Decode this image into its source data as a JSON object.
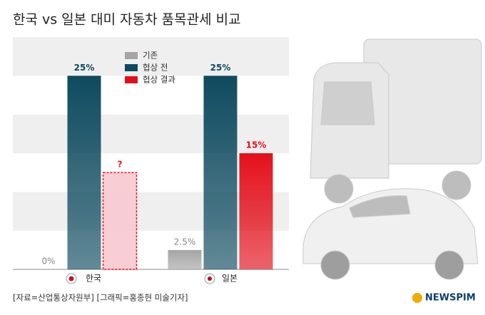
{
  "chart_data": {
    "type": "bar",
    "title": "한국 vs 일본 대미 자동차 품목관세 비교",
    "categories": [
      "한국",
      "일본"
    ],
    "series": [
      {
        "name": "기존",
        "color": "#a5a5a5",
        "values": [
          0,
          2.5
        ],
        "value_labels": [
          "0%",
          "2.5%"
        ]
      },
      {
        "name": "협상 전",
        "color": "#0e4a5f",
        "values": [
          25,
          25
        ],
        "value_labels": [
          "25%",
          "25%"
        ]
      },
      {
        "name": "협상 결과",
        "color": "#e3101c",
        "values": [
          12.5,
          15
        ],
        "value_labels": [
          "?",
          "15%"
        ],
        "styles": [
          "dashed",
          "solid"
        ]
      }
    ],
    "ylim": [
      0,
      30
    ],
    "yticks": [
      0,
      5,
      10,
      15,
      20,
      25,
      30
    ],
    "grid": true,
    "source": "[자료=산업통상자원부] [그래픽=홍종현 미술기자]",
    "brand": "NEWSPIM"
  }
}
